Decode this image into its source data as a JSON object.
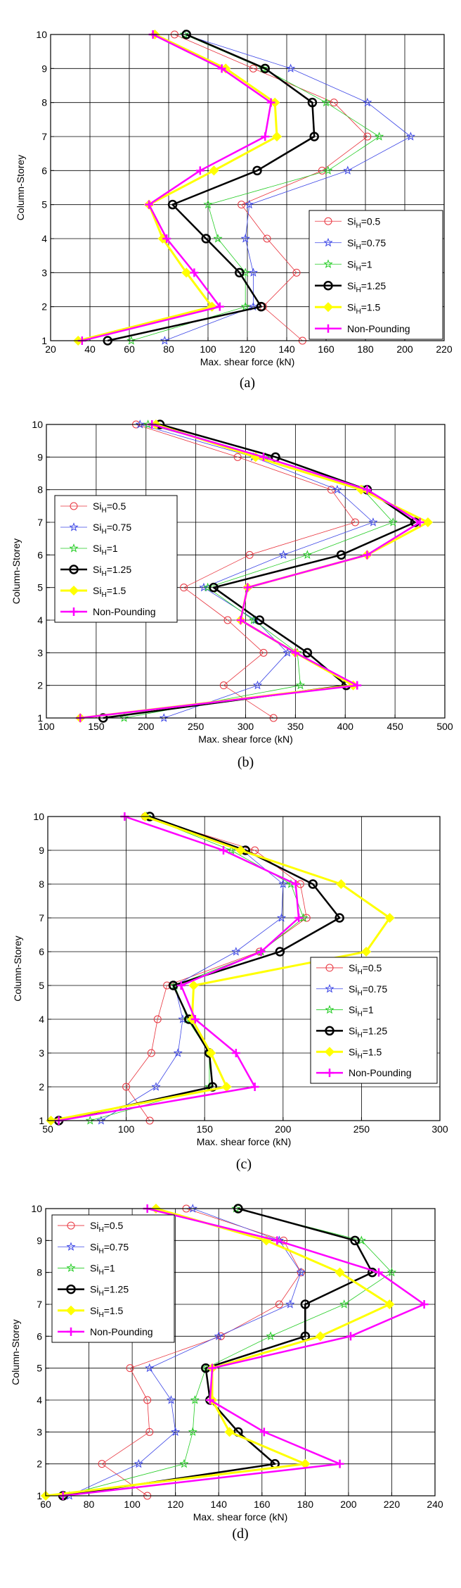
{
  "chart_data": [
    {
      "type": "line",
      "panel": "a",
      "caption": "(a)",
      "xlabel": "Max. shear force (kN)",
      "ylabel": "Column-Storey",
      "xlim": [
        20,
        220
      ],
      "ylim": [
        1,
        10
      ],
      "xticks": [
        20,
        40,
        60,
        80,
        100,
        120,
        140,
        160,
        180,
        200,
        220
      ],
      "yticks": [
        1,
        2,
        3,
        4,
        5,
        6,
        7,
        8,
        9,
        10
      ],
      "grid": true,
      "legend": "bottom-right",
      "y": [
        1,
        2,
        3,
        4,
        5,
        6,
        7,
        8,
        9,
        10
      ],
      "series": [
        {
          "name": "SiH=0.5",
          "label_main": "Si",
          "label_sub": "H",
          "label_tail": "=0.5",
          "color": "#e8323c",
          "marker": "circle-open",
          "width": 0.8,
          "values": [
            148,
            128,
            145,
            130,
            117,
            158,
            181,
            164,
            123,
            83
          ]
        },
        {
          "name": "SiH=0.75",
          "label_main": "Si",
          "label_sub": "H",
          "label_tail": "=0.75",
          "color": "#3c46e6",
          "marker": "star",
          "width": 0.8,
          "values": [
            78,
            123,
            123,
            119,
            121,
            171,
            203,
            181,
            142,
            88
          ]
        },
        {
          "name": "SiH=1",
          "label_main": "Si",
          "label_sub": "H",
          "label_tail": "=1",
          "color": "#22cc22",
          "marker": "star",
          "width": 0.8,
          "values": [
            61,
            119,
            119,
            105,
            100,
            161,
            187,
            160,
            128,
            88
          ]
        },
        {
          "name": "SiH=1.25",
          "label_main": "Si",
          "label_sub": "H",
          "label_tail": "=1.25",
          "color": "#000000",
          "marker": "circle-open-bold",
          "width": 2.5,
          "values": [
            49,
            127,
            116,
            99,
            82,
            125,
            154,
            153,
            129,
            89
          ]
        },
        {
          "name": "SiH=1.5",
          "label_main": "Si",
          "label_sub": "H",
          "label_tail": "=1.5",
          "color": "#ffff00",
          "marker": "diamond",
          "width": 3,
          "values": [
            34,
            102,
            89,
            77,
            70,
            103,
            135,
            134,
            109,
            73
          ]
        },
        {
          "name": "Non-Pounding",
          "label_main": "Non-Pounding",
          "label_sub": "",
          "label_tail": "",
          "color": "#ff00ff",
          "marker": "plus",
          "width": 2.5,
          "values": [
            36,
            106,
            93,
            79,
            70,
            96,
            129,
            132,
            107,
            72
          ]
        }
      ]
    },
    {
      "type": "line",
      "panel": "b",
      "caption": "(b)",
      "xlabel": "Max. shear force (kN)",
      "ylabel": "Column-Storey",
      "xlim": [
        100,
        500
      ],
      "ylim": [
        1,
        10
      ],
      "xticks": [
        100,
        150,
        200,
        250,
        300,
        350,
        400,
        450,
        500
      ],
      "yticks": [
        1,
        2,
        3,
        4,
        5,
        6,
        7,
        8,
        9,
        10
      ],
      "grid": true,
      "legend": "left",
      "y": [
        1,
        2,
        3,
        4,
        5,
        6,
        7,
        8,
        9,
        10
      ],
      "series": [
        {
          "name": "SiH=0.5",
          "label_main": "Si",
          "label_sub": "H",
          "label_tail": "=0.5",
          "color": "#e8323c",
          "marker": "circle-open",
          "width": 0.8,
          "values": [
            328,
            278,
            318,
            282,
            238,
            304,
            410,
            386,
            292,
            190
          ]
        },
        {
          "name": "SiH=0.75",
          "label_main": "Si",
          "label_sub": "H",
          "label_tail": "=0.75",
          "color": "#3c46e6",
          "marker": "star",
          "width": 0.8,
          "values": [
            218,
            312,
            342,
            310,
            258,
            338,
            428,
            392,
            308,
            194
          ]
        },
        {
          "name": "SiH=1",
          "label_main": "Si",
          "label_sub": "H",
          "label_tail": "=1",
          "color": "#22cc22",
          "marker": "star",
          "width": 0.8,
          "values": [
            178,
            355,
            352,
            308,
            262,
            362,
            448,
            418,
            320,
            202
          ]
        },
        {
          "name": "SiH=1.25",
          "label_main": "Si",
          "label_sub": "H",
          "label_tail": "=1.25",
          "color": "#000000",
          "marker": "circle-open-bold",
          "width": 2.5,
          "values": [
            157,
            401,
            362,
            314,
            268,
            396,
            470,
            422,
            330,
            214
          ]
        },
        {
          "name": "SiH=1.5",
          "label_main": "Si",
          "label_sub": "H",
          "label_tail": "=1.5",
          "color": "#ffff00",
          "marker": "diamond",
          "width": 3,
          "values": [
            134,
            408,
            350,
            295,
            302,
            422,
            483,
            416,
            310,
            210
          ]
        },
        {
          "name": "Non-Pounding",
          "label_main": "Non-Pounding",
          "label_sub": "",
          "label_tail": "",
          "color": "#ff00ff",
          "marker": "plus",
          "width": 2.5,
          "values": [
            134,
            412,
            350,
            295,
            302,
            422,
            475,
            422,
            318,
            206
          ]
        }
      ]
    },
    {
      "type": "line",
      "panel": "c",
      "caption": "(c)",
      "xlabel": "Max. shear force (kN)",
      "ylabel": "Column-Storey",
      "xlim": [
        50,
        300
      ],
      "ylim": [
        1,
        10
      ],
      "xticks": [
        50,
        100,
        150,
        200,
        250,
        300
      ],
      "yticks": [
        1,
        2,
        3,
        4,
        5,
        6,
        7,
        8,
        9,
        10
      ],
      "grid": true,
      "legend": "bottom-right",
      "y": [
        1,
        2,
        3,
        4,
        5,
        6,
        7,
        8,
        9,
        10
      ],
      "series": [
        {
          "name": "SiH=0.5",
          "label_main": "Si",
          "label_sub": "H",
          "label_tail": "=0.5",
          "color": "#e8323c",
          "marker": "circle-open",
          "width": 0.8,
          "values": [
            115,
            100,
            116,
            120,
            126,
            185,
            215,
            211,
            182,
            112
          ]
        },
        {
          "name": "SiH=0.75",
          "label_main": "Si",
          "label_sub": "H",
          "label_tail": "=0.75",
          "color": "#3c46e6",
          "marker": "star",
          "width": 0.8,
          "values": [
            84,
            119,
            133,
            136,
            131,
            170,
            199,
            200,
            174,
            113
          ]
        },
        {
          "name": "SiH=1",
          "label_main": "Si",
          "label_sub": "H",
          "label_tail": "=1",
          "color": "#22cc22",
          "marker": "star",
          "width": 0.8,
          "values": [
            77,
            153,
            153,
            139,
            131,
            186,
            213,
            205,
            167,
            113
          ]
        },
        {
          "name": "SiH=1.25",
          "label_main": "Si",
          "label_sub": "H",
          "label_tail": "=1.25",
          "color": "#000000",
          "marker": "circle-open-bold",
          "width": 2.5,
          "values": [
            57,
            155,
            153,
            140,
            130,
            198,
            236,
            219,
            176,
            115
          ]
        },
        {
          "name": "SiH=1.5",
          "label_main": "Si",
          "label_sub": "H",
          "label_tail": "=1.5",
          "color": "#ffff00",
          "marker": "diamond",
          "width": 3,
          "values": [
            52,
            164,
            154,
            142,
            143,
            253,
            268,
            237,
            173,
            112
          ]
        },
        {
          "name": "Non-Pounding",
          "label_main": "Non-Pounding",
          "label_sub": "",
          "label_tail": "",
          "color": "#ff00ff",
          "marker": "plus",
          "width": 2.5,
          "values": [
            57,
            182,
            170,
            144,
            135,
            186,
            210,
            208,
            162,
            99
          ]
        }
      ]
    },
    {
      "type": "line",
      "panel": "d",
      "caption": "(d)",
      "xlabel": "Max. shear force (kN)",
      "ylabel": "Column-Storey",
      "xlim": [
        60,
        240
      ],
      "ylim": [
        1,
        10
      ],
      "xticks": [
        60,
        80,
        100,
        120,
        140,
        160,
        180,
        200,
        220,
        240
      ],
      "yticks": [
        1,
        2,
        3,
        4,
        5,
        6,
        7,
        8,
        9,
        10
      ],
      "grid": true,
      "legend": "top-left",
      "y": [
        1,
        2,
        3,
        4,
        5,
        6,
        7,
        8,
        9,
        10
      ],
      "series": [
        {
          "name": "SiH=0.5",
          "label_main": "Si",
          "label_sub": "H",
          "label_tail": "=0.5",
          "color": "#e8323c",
          "marker": "circle-open",
          "width": 0.8,
          "values": [
            107,
            86,
            108,
            107,
            99,
            141,
            168,
            178,
            170,
            125
          ]
        },
        {
          "name": "SiH=0.75",
          "label_main": "Si",
          "label_sub": "H",
          "label_tail": "=0.75",
          "color": "#3c46e6",
          "marker": "star",
          "width": 0.8,
          "values": [
            71,
            103,
            120,
            118,
            108,
            140,
            173,
            178,
            168,
            128
          ]
        },
        {
          "name": "SiH=1",
          "label_main": "Si",
          "label_sub": "H",
          "label_tail": "=1",
          "color": "#22cc22",
          "marker": "star",
          "width": 0.8,
          "values": [
            68,
            124,
            128,
            129,
            134,
            164,
            198,
            220,
            206,
            148
          ]
        },
        {
          "name": "SiH=1.25",
          "label_main": "Si",
          "label_sub": "H",
          "label_tail": "=1.25",
          "color": "#000000",
          "marker": "circle-open-bold",
          "width": 2.5,
          "values": [
            68,
            166,
            149,
            136,
            134,
            180,
            180,
            211,
            203,
            149
          ]
        },
        {
          "name": "SiH=1.5",
          "label_main": "Si",
          "label_sub": "H",
          "label_tail": "=1.5",
          "color": "#ffff00",
          "marker": "diamond",
          "width": 3,
          "values": [
            60,
            180,
            145,
            137,
            137,
            187,
            219,
            196,
            162,
            111
          ]
        },
        {
          "name": "Non-Pounding",
          "label_main": "Non-Pounding",
          "label_sub": "",
          "label_tail": "",
          "color": "#ff00ff",
          "marker": "plus",
          "width": 2.5,
          "values": [
            68,
            196,
            161,
            136,
            137,
            201,
            235,
            214,
            167,
            107
          ]
        }
      ]
    }
  ]
}
